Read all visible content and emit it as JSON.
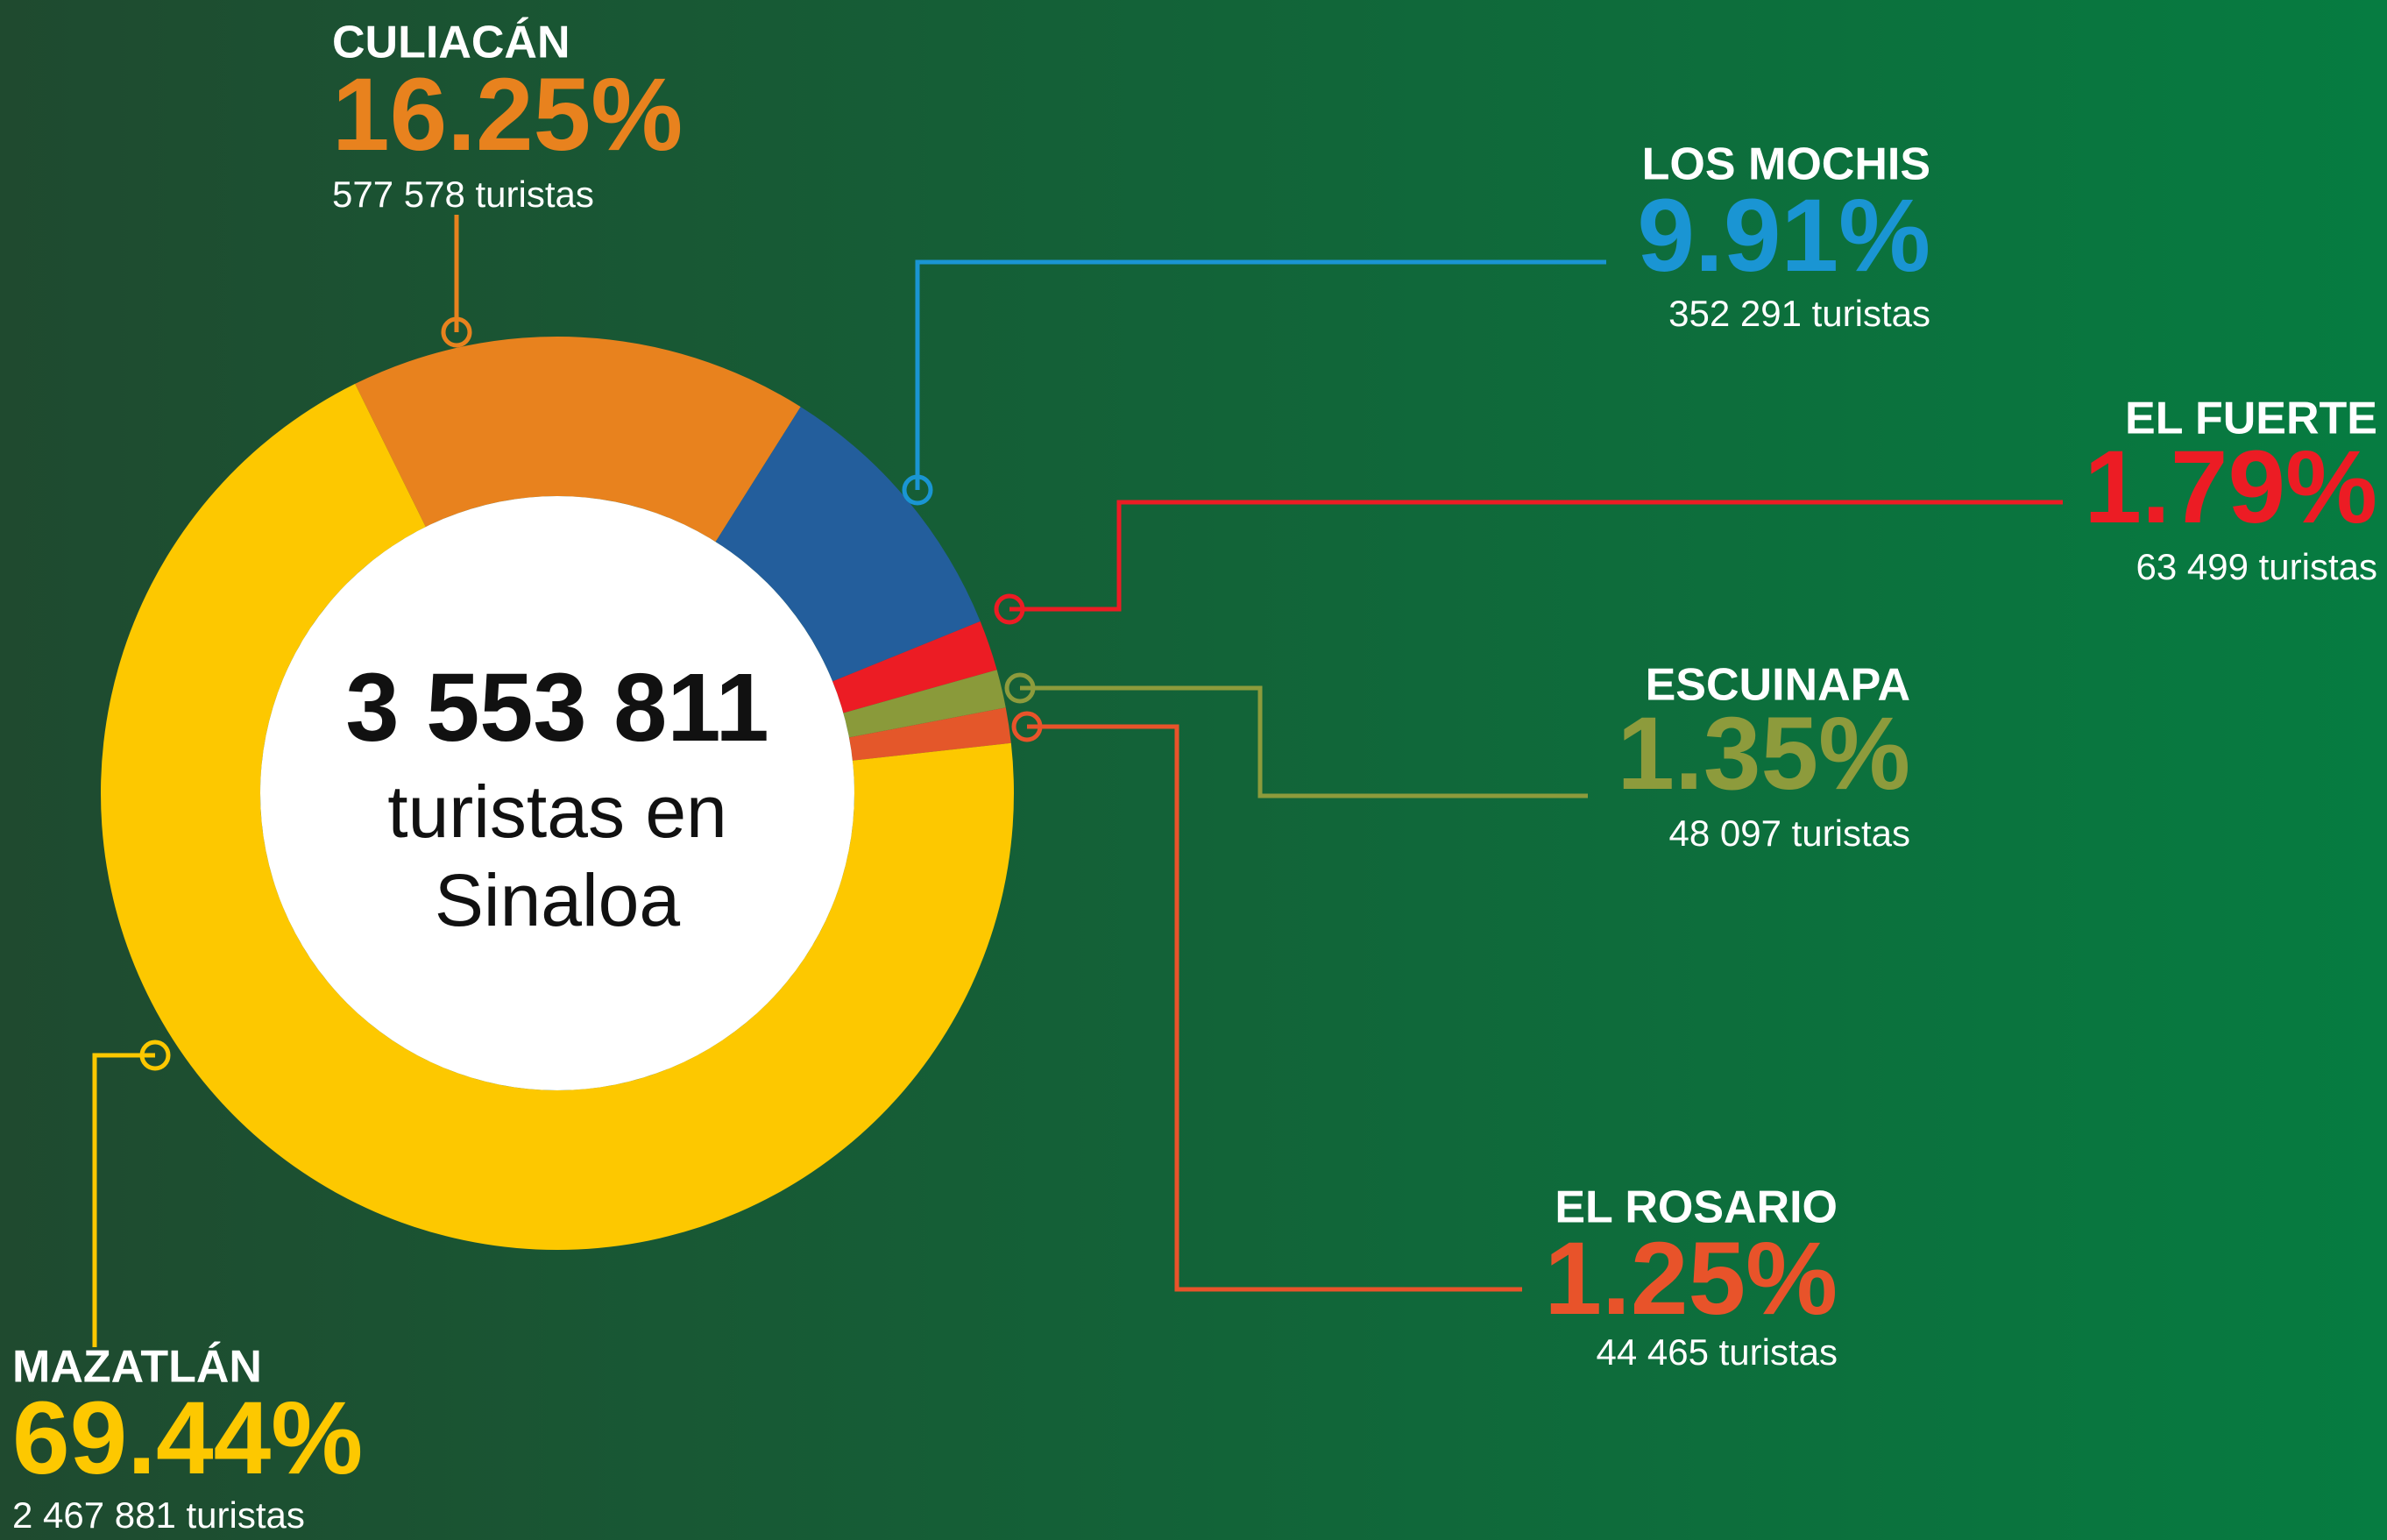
{
  "chart_data": {
    "type": "donut",
    "categories": [
      "CULIACÁN",
      "LOS MOCHIS",
      "EL FUERTE",
      "ESCUINAPA",
      "EL ROSARIO",
      "MAZATLÁN"
    ],
    "values": [
      16.25,
      9.91,
      1.79,
      1.35,
      1.25,
      69.44
    ],
    "value_labels": [
      "16.25%",
      "9.91%",
      "1.79%",
      "1.35%",
      "1.25%",
      "69.44%"
    ],
    "counts": [
      "577 578 turistas",
      "352 291 turistas",
      "63 499  turistas",
      "48 097  turistas",
      "44 465  turistas",
      "2 467 881  turistas"
    ],
    "colors": [
      "#e8821e",
      "#235e9c",
      "#ec1c24",
      "#8a9a3a",
      "#e4572a",
      "#fdc800"
    ],
    "label_colors": [
      "#e8821e",
      "#1a95d3",
      "#ec1c24",
      "#8d9b3c",
      "#e8532a",
      "#fdc800"
    ],
    "center_label": [
      "3 553 811",
      "turistas en",
      "Sinaloa"
    ]
  }
}
